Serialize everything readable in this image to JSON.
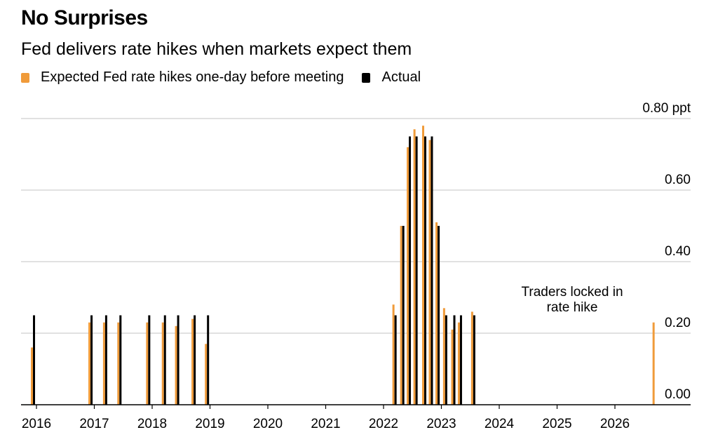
{
  "colors": {
    "expected": "#F09B3A",
    "actual": "#000000",
    "grid": "#cfcfcf"
  },
  "chart_data": {
    "type": "bar",
    "title": "No Surprises",
    "subtitle": "Fed delivers rate hikes when markets expect them",
    "y_unit": "ppt",
    "ylim": [
      0,
      0.8
    ],
    "y_ticks": [
      "0.00",
      "0.20",
      "0.40",
      "0.60",
      "0.80 ppt"
    ],
    "x_ticks": [
      "2016",
      "2017",
      "2018",
      "2019",
      "2020",
      "2021",
      "2022",
      "2023",
      "2024",
      "2025",
      "2026"
    ],
    "grid": true,
    "legend_position": "top-left",
    "annotation": {
      "lines": [
        "Traders locked in",
        "rate hike"
      ]
    },
    "series": [
      {
        "name": "Expected Fed rate hikes one-day before meeting",
        "color": "#F09B3A",
        "points": [
          [
            "2015-12-16",
            0.16
          ],
          [
            "2016-12-14",
            0.23
          ],
          [
            "2017-03-15",
            0.23
          ],
          [
            "2017-06-14",
            0.23
          ],
          [
            "2017-12-13",
            0.23
          ],
          [
            "2018-03-21",
            0.23
          ],
          [
            "2018-06-13",
            0.22
          ],
          [
            "2018-09-26",
            0.24
          ],
          [
            "2018-12-19",
            0.17
          ],
          [
            "2022-03-16",
            0.28
          ],
          [
            "2022-05-04",
            0.5
          ],
          [
            "2022-06-15",
            0.72
          ],
          [
            "2022-07-27",
            0.77
          ],
          [
            "2022-09-21",
            0.78
          ],
          [
            "2022-11-02",
            0.74
          ],
          [
            "2022-12-14",
            0.51
          ],
          [
            "2023-02-01",
            0.27
          ],
          [
            "2023-03-22",
            0.21
          ],
          [
            "2023-05-03",
            0.23
          ],
          [
            "2023-07-26",
            0.26
          ],
          [
            "2026-09-15",
            0.23
          ]
        ]
      },
      {
        "name": "Actual",
        "color": "#000000",
        "points": [
          [
            "2015-12-16",
            0.25
          ],
          [
            "2016-12-14",
            0.25
          ],
          [
            "2017-03-15",
            0.25
          ],
          [
            "2017-06-14",
            0.25
          ],
          [
            "2017-12-13",
            0.25
          ],
          [
            "2018-03-21",
            0.25
          ],
          [
            "2018-06-13",
            0.25
          ],
          [
            "2018-09-26",
            0.25
          ],
          [
            "2018-12-19",
            0.25
          ],
          [
            "2022-03-16",
            0.25
          ],
          [
            "2022-05-04",
            0.5
          ],
          [
            "2022-06-15",
            0.75
          ],
          [
            "2022-07-27",
            0.75
          ],
          [
            "2022-09-21",
            0.75
          ],
          [
            "2022-11-02",
            0.75
          ],
          [
            "2022-12-14",
            0.5
          ],
          [
            "2023-02-01",
            0.25
          ],
          [
            "2023-03-22",
            0.25
          ],
          [
            "2023-05-03",
            0.25
          ],
          [
            "2023-07-26",
            0.25
          ]
        ]
      }
    ]
  }
}
